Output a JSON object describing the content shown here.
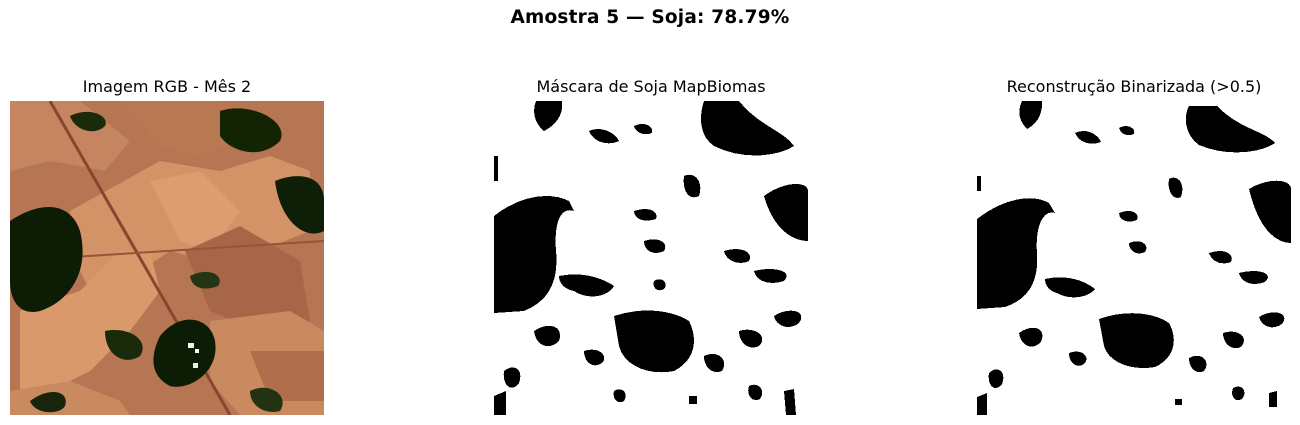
{
  "figure": {
    "suptitle": "Amostra 5 — Soja: 78.79%",
    "panels": [
      {
        "title": "Imagem RGB - Mês 2",
        "content": "RGB satellite image"
      },
      {
        "title": "Máscara de Soja MapBiomas",
        "content": "binary soybean mask"
      },
      {
        "title": "Reconstrução Binarizada (>0.5)",
        "content": "binarized reconstruction"
      }
    ]
  },
  "colors": {
    "crop_light": "#d49366",
    "crop_mid": "#b57451",
    "crop_dark": "#7a3f2a",
    "forest": "#0d1c05",
    "mask_on": "#ffffff",
    "mask_off": "#000000"
  }
}
